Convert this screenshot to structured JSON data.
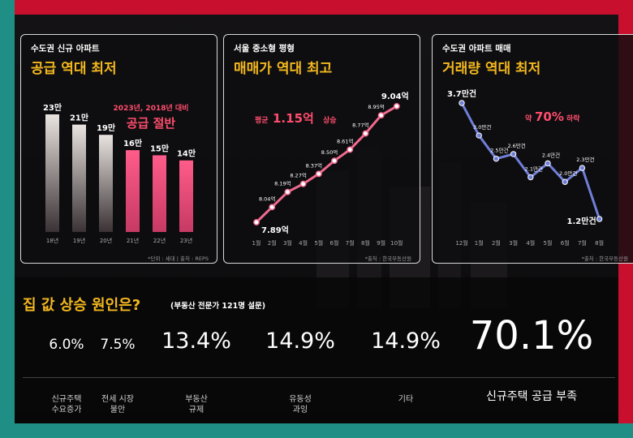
{
  "panel1": {
    "subtitle": "수도권 신규 아파트",
    "title": "공급 역대 최저",
    "annotation_line1": "2023년, 2018년 대비",
    "annotation_line2": "공급 절반",
    "note": "*단위 : 세대 | 출처 : REPS"
  },
  "panel2": {
    "subtitle": "서울 중소형 평형",
    "title": "매매가 역대 최고",
    "annotation_prefix": "평균",
    "annotation_value": "1.15억",
    "annotation_suffix": "상승",
    "note": "*출처 : 한국부동산원"
  },
  "panel3": {
    "subtitle": "수도권 아파트 매매",
    "title": "거래량 역대 최저",
    "annotation_prefix": "약",
    "annotation_value": "70%",
    "annotation_suffix": "하락",
    "note": "*출처 : 한국부동산원"
  },
  "survey": {
    "title": "집 값 상승 원인은?",
    "subtitle": "(부동산 전문가 121명 설문)"
  },
  "colors": {
    "accent_yellow": "#f4b81f",
    "accent_pink": "#ff4d6d",
    "bar_light": "#e9e3e0",
    "bar_pink": "#ff5c8a",
    "line_pink": "#f06a8e",
    "line_blue": "#6f7fd8"
  },
  "chart_data": [
    {
      "type": "bar",
      "categories": [
        "18년",
        "19년",
        "20년",
        "21년",
        "22년",
        "23년"
      ],
      "values": [
        23,
        21,
        19,
        16,
        15,
        14
      ],
      "data_labels": [
        "23만",
        "21만",
        "19만",
        "16만",
        "15만",
        "14만"
      ]
    },
    {
      "type": "line",
      "x": [
        "1월",
        "2월",
        "3월",
        "4월",
        "5월",
        "6월",
        "7월",
        "8월",
        "9월",
        "10월"
      ],
      "values": [
        7.89,
        8.04,
        8.19,
        8.27,
        8.37,
        8.5,
        8.61,
        8.77,
        8.95,
        9.04
      ],
      "data_labels": [
        "7.89억",
        "8.04억",
        "8.19억",
        "8.27억",
        "8.37억",
        "8.50억",
        "8.61억",
        "8.77억",
        "8.95억",
        "9.04억"
      ]
    },
    {
      "type": "line",
      "x": [
        "12월",
        "1월",
        "2월",
        "3월",
        "4월",
        "5월",
        "6월",
        "7월",
        "8월"
      ],
      "values": [
        3.7,
        3.0,
        2.5,
        2.6,
        2.1,
        2.4,
        2.0,
        2.3,
        1.2
      ],
      "data_labels": [
        "3.7만건",
        "3.0만건",
        "2.5만건",
        "2.6만건",
        "2.1만건",
        "2.4만건",
        "2.0만건",
        "2.3만건",
        "1.2만건"
      ]
    },
    {
      "type": "bar",
      "categories": [
        "신규주택\n수요증가",
        "전세 시장\n불안",
        "부동산\n규제",
        "유동성\n과잉",
        "기타",
        "신규주택 공급 부족"
      ],
      "values": [
        6.0,
        7.5,
        13.4,
        14.9,
        14.9,
        70.1
      ],
      "data_labels": [
        "6.0%",
        "7.5%",
        "13.4%",
        "14.9%",
        "14.9%",
        "70.1%"
      ]
    }
  ]
}
